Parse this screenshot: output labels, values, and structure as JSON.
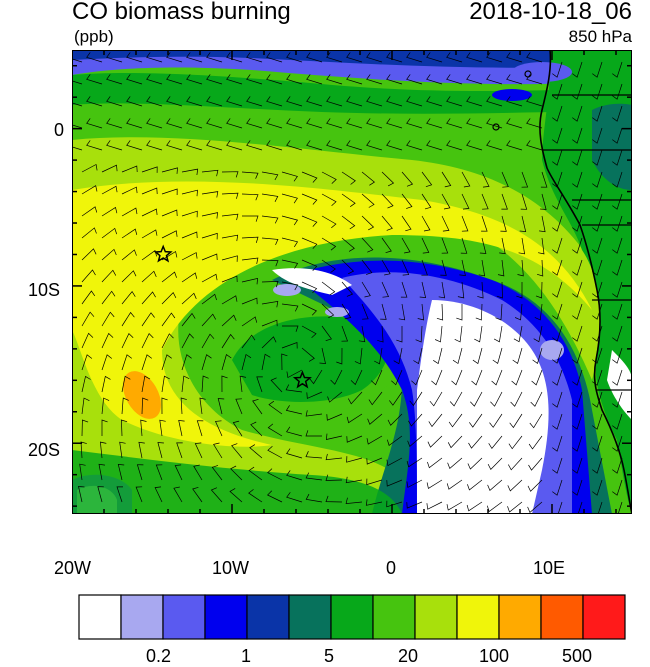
{
  "header": {
    "title": "CO biomass burning",
    "datetime": "2018-10-18_06",
    "units": "(ppb)",
    "level": "850 hPa"
  },
  "axes": {
    "x_ticks": [
      "20W",
      "10W",
      "0",
      "10E"
    ],
    "y_ticks": [
      "0",
      "10S",
      "20S"
    ],
    "lon_range": [
      -20,
      15
    ],
    "lat_range": [
      -24.5,
      5
    ]
  },
  "markers": [
    {
      "name": "star",
      "lon": -14.3,
      "lat": -8
    },
    {
      "name": "star",
      "lon": -5.6,
      "lat": -16
    }
  ],
  "colorbar": {
    "colors": [
      "#ffffff",
      "#a8a8f0",
      "#5a5af0",
      "#0000ee",
      "#0a34a8",
      "#07725c",
      "#07a81a",
      "#46c40f",
      "#a8e00c",
      "#f0f50a",
      "#ffaa00",
      "#ff5a00",
      "#ff1a1a"
    ],
    "labels": [
      "0.2",
      "1",
      "5",
      "20",
      "100",
      "500"
    ]
  }
}
